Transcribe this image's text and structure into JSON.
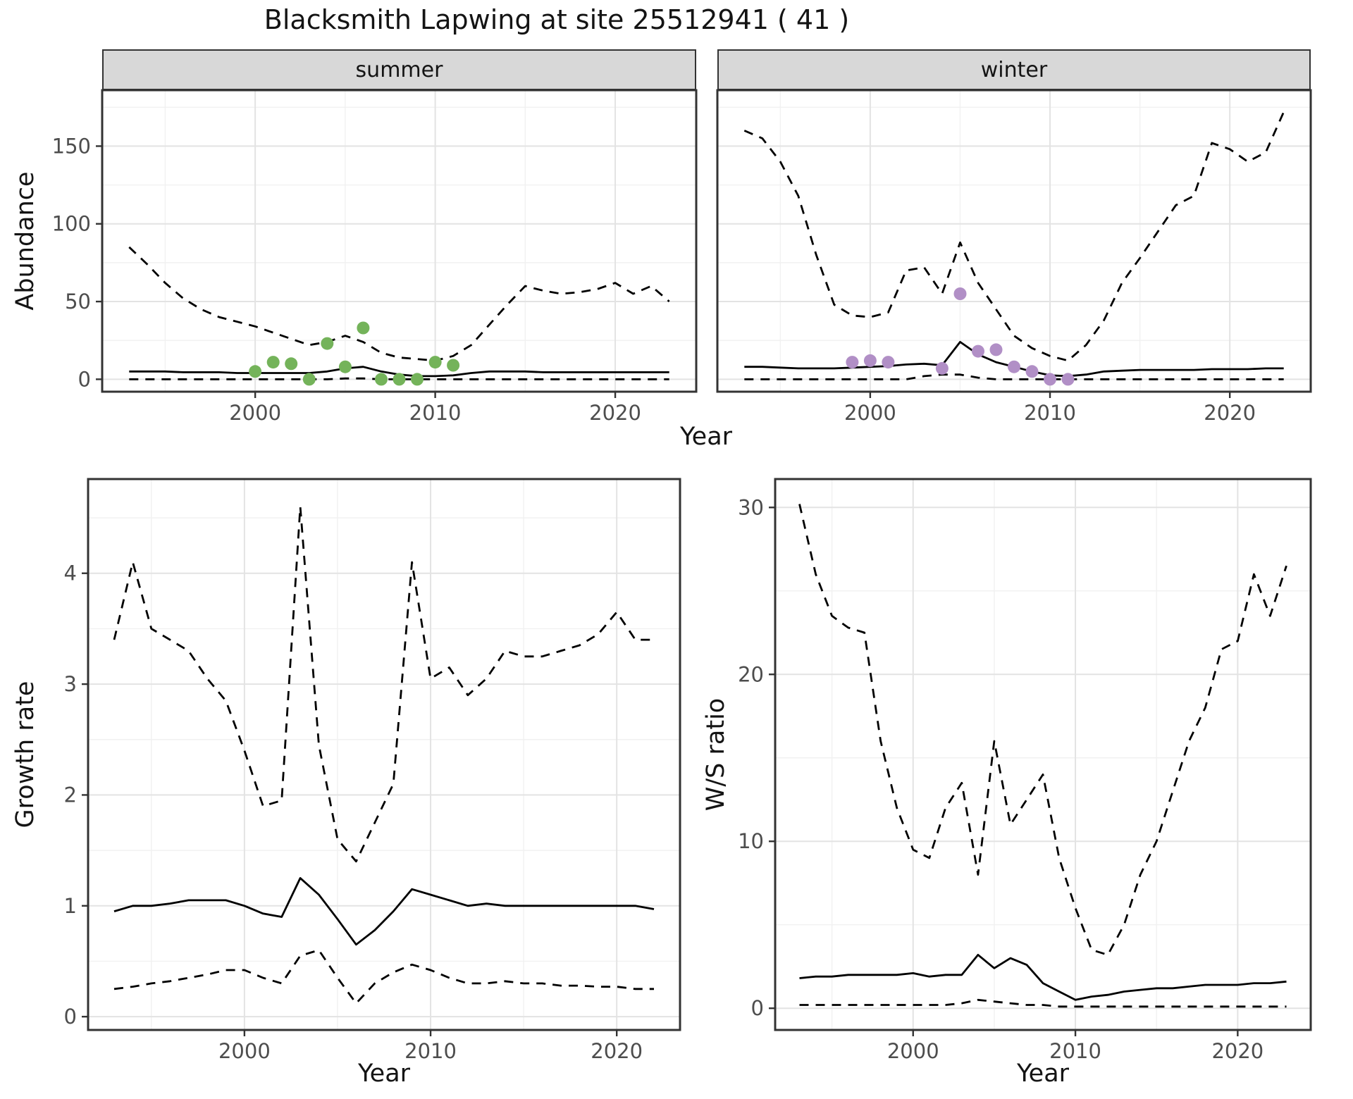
{
  "title": "Blacksmith Lapwing at site 25512941 ( 41 )",
  "facets": [
    "summer",
    "winter"
  ],
  "colors": {
    "median_line": "#000000",
    "ci_line": "#000000",
    "summer_points": "#74b35a",
    "winter_points": "#b18fc6",
    "strip_background": "#d8d8d8",
    "panel_border": "#333333",
    "grid_major": "#e3e3e3",
    "grid_minor": "#f1f1f1",
    "tick_text": "#4d4d4d",
    "text": "#141414"
  },
  "chart_data": [
    {
      "id": "abundance-summer",
      "type": "line",
      "facet": "summer",
      "title": "",
      "xlabel": "Year",
      "ylabel": "Abundance",
      "xlim": [
        1991.5,
        2024.5
      ],
      "ylim": [
        -8,
        186
      ],
      "xticks": [
        2000,
        2010,
        2020
      ],
      "yticks": [
        0,
        50,
        100,
        150
      ],
      "xminor": [
        1995,
        2005,
        2015
      ],
      "yminor": [
        25,
        75,
        125,
        175
      ],
      "x": [
        1993,
        1994,
        1995,
        1996,
        1997,
        1998,
        1999,
        2000,
        2001,
        2002,
        2003,
        2004,
        2005,
        2006,
        2007,
        2008,
        2009,
        2010,
        2011,
        2012,
        2013,
        2014,
        2015,
        2016,
        2017,
        2018,
        2019,
        2020,
        2021,
        2022,
        2023
      ],
      "series": [
        {
          "name": "upper-95ci",
          "style": "dashed",
          "values": [
            85,
            74,
            62,
            52,
            45,
            40,
            37,
            34,
            30,
            26,
            22,
            24,
            28,
            24,
            17,
            14,
            13,
            12,
            15,
            22,
            35,
            48,
            60,
            57,
            55,
            56,
            58,
            62,
            55,
            60,
            50
          ]
        },
        {
          "name": "median",
          "style": "solid",
          "values": [
            5,
            5,
            5,
            4.5,
            4.5,
            4.5,
            4,
            4,
            4,
            4,
            4,
            5,
            7,
            8,
            5,
            3,
            2,
            2,
            2.5,
            4,
            5,
            5,
            5,
            4.5,
            4.5,
            4.5,
            4.5,
            4.5,
            4.5,
            4.5,
            4.5
          ]
        },
        {
          "name": "lower-95ci",
          "style": "dashed",
          "values": [
            0,
            0,
            0,
            0,
            0,
            0,
            0,
            0,
            0,
            0,
            0,
            0,
            0.5,
            0.5,
            0,
            0,
            0,
            0,
            0,
            0,
            0,
            0,
            0,
            0,
            0,
            0,
            0,
            0,
            0,
            0,
            0
          ]
        }
      ],
      "points": {
        "name": "observed-summer-counts",
        "color": "#74b35a",
        "x": [
          2000,
          2001,
          2002,
          2003,
          2004,
          2005,
          2006,
          2007,
          2008,
          2009,
          2010,
          2011
        ],
        "y": [
          5,
          11,
          10,
          0,
          23,
          8,
          33,
          0,
          0,
          0,
          11,
          9
        ]
      }
    },
    {
      "id": "abundance-winter",
      "type": "line",
      "facet": "winter",
      "title": "",
      "xlabel": "Year",
      "ylabel": "Abundance",
      "xlim": [
        1991.5,
        2024.5
      ],
      "ylim": [
        -8,
        186
      ],
      "xticks": [
        2000,
        2010,
        2020
      ],
      "yticks": [
        0,
        50,
        100,
        150
      ],
      "xminor": [
        1995,
        2005,
        2015
      ],
      "yminor": [
        25,
        75,
        125,
        175
      ],
      "x": [
        1993,
        1994,
        1995,
        1996,
        1997,
        1998,
        1999,
        2000,
        2001,
        2002,
        2003,
        2004,
        2005,
        2006,
        2007,
        2008,
        2009,
        2010,
        2011,
        2012,
        2013,
        2014,
        2015,
        2016,
        2017,
        2018,
        2019,
        2020,
        2021,
        2022,
        2023
      ],
      "series": [
        {
          "name": "upper-95ci",
          "style": "dashed",
          "values": [
            160,
            155,
            140,
            118,
            80,
            48,
            41,
            40,
            43,
            70,
            72,
            55,
            88,
            62,
            45,
            28,
            20,
            15,
            12,
            22,
            38,
            62,
            78,
            95,
            112,
            118,
            152,
            148,
            140,
            146,
            172
          ]
        },
        {
          "name": "median",
          "style": "solid",
          "values": [
            8,
            8,
            7.5,
            7,
            7,
            7,
            7.5,
            8,
            8.5,
            9.5,
            10,
            9,
            24,
            16,
            11,
            8,
            5,
            2.5,
            2,
            3,
            5,
            5.5,
            6,
            6,
            6,
            6,
            6.5,
            6.5,
            6.5,
            7,
            7
          ]
        },
        {
          "name": "lower-95ci",
          "style": "dashed",
          "values": [
            0,
            0,
            0,
            0,
            0,
            0,
            0,
            0,
            0,
            0,
            2,
            3,
            3,
            1,
            0,
            0,
            0,
            0,
            0,
            0,
            0,
            0,
            0,
            0,
            0,
            0,
            0,
            0,
            0,
            0,
            0
          ]
        }
      ],
      "points": {
        "name": "observed-winter-counts",
        "color": "#b18fc6",
        "x": [
          1999,
          2000,
          2001,
          2004,
          2005,
          2006,
          2007,
          2008,
          2009,
          2010,
          2011
        ],
        "y": [
          11,
          12,
          11,
          7,
          55,
          18,
          19,
          8,
          5,
          0,
          0
        ]
      }
    },
    {
      "id": "growth-rate",
      "type": "line",
      "facet": "",
      "title": "",
      "xlabel": "Year",
      "ylabel": "Growth rate",
      "xlim": [
        1991.6,
        2023.4
      ],
      "ylim": [
        -0.12,
        4.85
      ],
      "xticks": [
        2000,
        2010,
        2020
      ],
      "yticks": [
        0,
        1,
        2,
        3,
        4
      ],
      "xminor": [
        1995,
        2005,
        2015
      ],
      "yminor": [
        0.5,
        1.5,
        2.5,
        3.5,
        4.5
      ],
      "x": [
        1993,
        1994,
        1995,
        1996,
        1997,
        1998,
        1999,
        2000,
        2001,
        2002,
        2003,
        2004,
        2005,
        2006,
        2007,
        2008,
        2009,
        2010,
        2011,
        2012,
        2013,
        2014,
        2015,
        2016,
        2017,
        2018,
        2019,
        2020,
        2021,
        2022
      ],
      "series": [
        {
          "name": "upper-95ci",
          "style": "dashed",
          "values": [
            3.4,
            4.1,
            3.5,
            3.4,
            3.3,
            3.05,
            2.85,
            2.4,
            1.9,
            1.95,
            4.6,
            2.45,
            1.6,
            1.4,
            1.75,
            2.1,
            4.1,
            3.05,
            3.15,
            2.9,
            3.05,
            3.3,
            3.25,
            3.25,
            3.3,
            3.35,
            3.45,
            3.65,
            3.4,
            3.4
          ]
        },
        {
          "name": "median",
          "style": "solid",
          "values": [
            0.95,
            1.0,
            1.0,
            1.02,
            1.05,
            1.05,
            1.05,
            1.0,
            0.93,
            0.9,
            1.25,
            1.1,
            0.88,
            0.65,
            0.78,
            0.95,
            1.15,
            1.1,
            1.05,
            1.0,
            1.02,
            1.0,
            1.0,
            1.0,
            1.0,
            1.0,
            1.0,
            1.0,
            1.0,
            0.97
          ]
        },
        {
          "name": "lower-95ci",
          "style": "dashed",
          "values": [
            0.25,
            0.27,
            0.3,
            0.32,
            0.35,
            0.38,
            0.42,
            0.42,
            0.35,
            0.3,
            0.55,
            0.6,
            0.35,
            0.12,
            0.3,
            0.4,
            0.47,
            0.42,
            0.35,
            0.3,
            0.3,
            0.32,
            0.3,
            0.3,
            0.28,
            0.28,
            0.27,
            0.27,
            0.25,
            0.25
          ]
        }
      ],
      "points": null
    },
    {
      "id": "ws-ratio",
      "type": "line",
      "facet": "",
      "title": "",
      "xlabel": "Year",
      "ylabel": "W/S ratio",
      "xlim": [
        1991.5,
        2024.5
      ],
      "ylim": [
        -1.3,
        31.7
      ],
      "xticks": [
        2000,
        2010,
        2020
      ],
      "yticks": [
        0,
        10,
        20,
        30
      ],
      "xminor": [
        1995,
        2005,
        2015
      ],
      "yminor": [
        5,
        15,
        25
      ],
      "x": [
        1993,
        1994,
        1995,
        1996,
        1997,
        1998,
        1999,
        2000,
        2001,
        2002,
        2003,
        2004,
        2005,
        2006,
        2007,
        2008,
        2009,
        2010,
        2011,
        2012,
        2013,
        2014,
        2015,
        2016,
        2017,
        2018,
        2019,
        2020,
        2021,
        2022,
        2023
      ],
      "series": [
        {
          "name": "upper-95ci",
          "style": "dashed",
          "values": [
            30.2,
            26,
            23.5,
            22.8,
            22.5,
            16,
            12,
            9.5,
            9,
            12,
            13.5,
            8,
            16,
            11,
            12.5,
            14,
            9,
            6,
            3.5,
            3.2,
            5,
            8,
            10,
            13,
            16,
            18,
            21.5,
            22,
            26,
            23.5,
            26.5
          ]
        },
        {
          "name": "median",
          "style": "solid",
          "values": [
            1.8,
            1.9,
            1.9,
            2.0,
            2.0,
            2.0,
            2.0,
            2.1,
            1.9,
            2.0,
            2.0,
            3.2,
            2.4,
            3.0,
            2.6,
            1.5,
            1.0,
            0.5,
            0.7,
            0.8,
            1.0,
            1.1,
            1.2,
            1.2,
            1.3,
            1.4,
            1.4,
            1.4,
            1.5,
            1.5,
            1.6
          ]
        },
        {
          "name": "lower-95ci",
          "style": "dashed",
          "values": [
            0.2,
            0.2,
            0.2,
            0.2,
            0.2,
            0.2,
            0.2,
            0.2,
            0.2,
            0.2,
            0.3,
            0.5,
            0.4,
            0.3,
            0.2,
            0.2,
            0.1,
            0.1,
            0.1,
            0.1,
            0.1,
            0.1,
            0.1,
            0.1,
            0.1,
            0.1,
            0.1,
            0.1,
            0.1,
            0.1,
            0.1
          ]
        }
      ],
      "points": null
    }
  ]
}
